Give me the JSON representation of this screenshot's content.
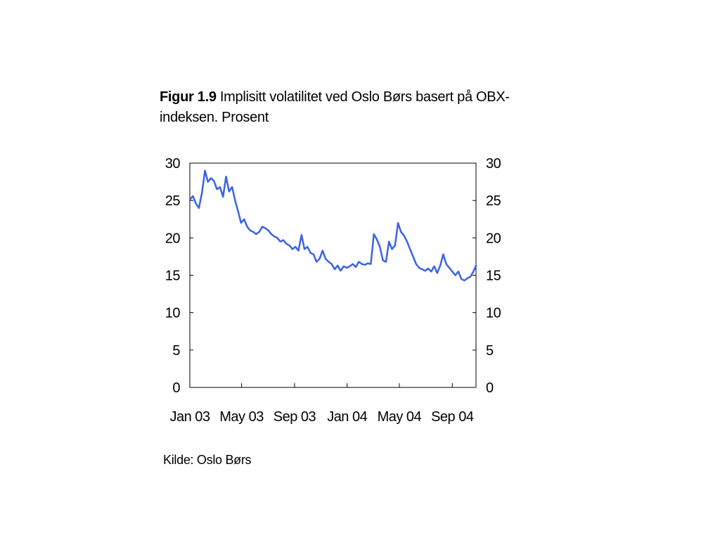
{
  "caption": {
    "figure": "Figur 1.9",
    "text": "Implisitt volatilitet ved Oslo Børs basert på OBX-indeksen. Prosent"
  },
  "source": "Kilde: Oslo Børs",
  "chart_data": {
    "type": "line",
    "title": "",
    "xlabel": "",
    "ylabel": "",
    "ylim": [
      0,
      30
    ],
    "yticks": [
      0,
      5,
      10,
      15,
      20,
      25,
      30
    ],
    "x_tick_labels": [
      "Jan 03",
      "May 03",
      "Sep 03",
      "Jan 04",
      "May 04",
      "Sep 04"
    ],
    "x_range": [
      "2003-01-01",
      "2004-10-26"
    ],
    "grid": false,
    "legend": "none",
    "line_color": "#3a63e6",
    "series": [
      {
        "x": [
          "2003-01-01",
          "2003-01-08",
          "2003-01-15",
          "2003-01-22",
          "2003-01-29",
          "2003-02-05",
          "2003-02-12",
          "2003-02-19",
          "2003-02-26",
          "2003-03-05",
          "2003-03-12",
          "2003-03-19",
          "2003-03-26",
          "2003-04-02",
          "2003-04-09",
          "2003-04-16",
          "2003-04-23",
          "2003-04-30",
          "2003-05-07",
          "2003-05-14",
          "2003-05-21",
          "2003-05-28",
          "2003-06-04",
          "2003-06-11",
          "2003-06-18",
          "2003-06-25",
          "2003-07-02",
          "2003-07-09",
          "2003-07-16",
          "2003-07-23",
          "2003-07-30",
          "2003-08-06",
          "2003-08-13",
          "2003-08-20",
          "2003-08-27",
          "2003-09-03",
          "2003-09-10",
          "2003-09-17",
          "2003-09-24",
          "2003-10-01",
          "2003-10-08",
          "2003-10-15",
          "2003-10-22",
          "2003-10-29",
          "2003-11-05",
          "2003-11-12",
          "2003-11-19",
          "2003-11-26",
          "2003-12-03",
          "2003-12-10",
          "2003-12-17",
          "2003-12-24",
          "2003-12-31",
          "2004-01-07",
          "2004-01-14",
          "2004-01-21",
          "2004-01-28",
          "2004-02-04",
          "2004-02-11",
          "2004-02-18",
          "2004-02-25",
          "2004-03-03",
          "2004-03-10",
          "2004-03-17",
          "2004-03-24",
          "2004-03-31",
          "2004-04-07",
          "2004-04-14",
          "2004-04-21",
          "2004-04-28",
          "2004-05-05",
          "2004-05-12",
          "2004-05-19",
          "2004-05-26",
          "2004-06-02",
          "2004-06-09",
          "2004-06-16",
          "2004-06-23",
          "2004-06-30",
          "2004-07-07",
          "2004-07-14",
          "2004-07-21",
          "2004-07-28",
          "2004-08-04",
          "2004-08-11",
          "2004-08-18",
          "2004-08-25",
          "2004-09-01",
          "2004-09-08",
          "2004-09-15",
          "2004-09-22",
          "2004-09-29",
          "2004-10-06",
          "2004-10-13",
          "2004-10-20",
          "2004-10-26"
        ],
        "values": [
          25.1,
          25.6,
          24.6,
          24.0,
          26.0,
          29.0,
          27.5,
          28.0,
          27.6,
          26.5,
          26.8,
          25.5,
          28.2,
          26.2,
          26.8,
          25.0,
          23.5,
          22.0,
          22.5,
          21.5,
          21.0,
          20.8,
          20.5,
          20.8,
          21.5,
          21.3,
          21.0,
          20.5,
          20.2,
          20.0,
          19.5,
          19.7,
          19.2,
          19.0,
          18.5,
          18.8,
          18.3,
          20.4,
          18.5,
          18.8,
          18.0,
          17.8,
          16.8,
          17.2,
          18.3,
          17.2,
          16.8,
          16.5,
          15.8,
          16.3,
          15.6,
          16.2,
          16.0,
          16.2,
          16.5,
          16.1,
          16.8,
          16.5,
          16.4,
          16.6,
          16.5,
          20.5,
          19.8,
          18.8,
          17.0,
          16.8,
          19.5,
          18.5,
          19.0,
          22.0,
          20.8,
          20.3,
          19.5,
          18.5,
          17.5,
          16.5,
          16.0,
          15.8,
          15.6,
          15.9,
          15.5,
          16.2,
          15.3,
          16.3,
          17.8,
          16.5,
          16.0,
          15.5,
          15.0,
          15.5,
          14.5,
          14.3,
          14.6,
          14.8,
          15.5,
          16.3
        ]
      }
    ]
  }
}
